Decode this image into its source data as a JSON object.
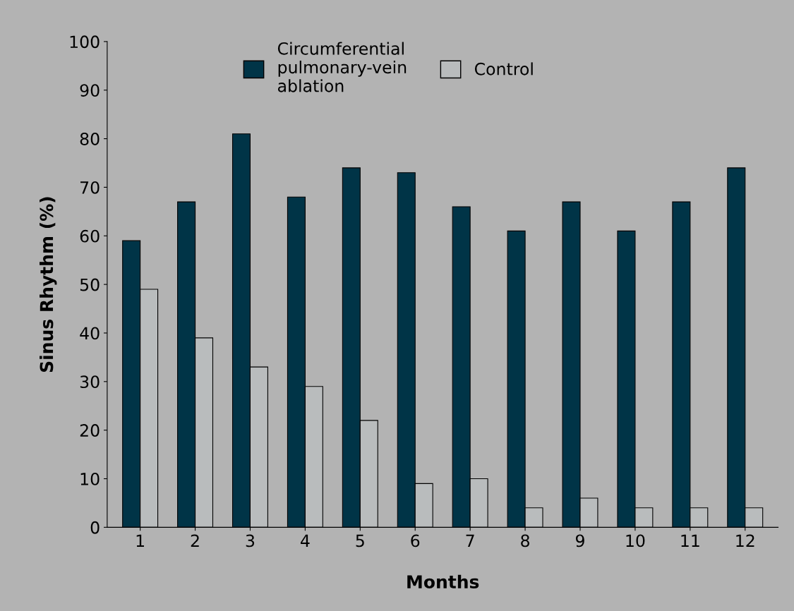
{
  "chart_data": {
    "type": "bar",
    "xlabel": "Months",
    "ylabel": "Sinus Rhythm (%)",
    "categories": [
      "1",
      "2",
      "3",
      "4",
      "5",
      "6",
      "7",
      "8",
      "9",
      "10",
      "11",
      "12"
    ],
    "series": [
      {
        "name": "Circumferential\npulmonary-vein\nablation",
        "color": "#003447",
        "values": [
          59,
          67,
          81,
          68,
          74,
          73,
          66,
          61,
          67,
          61,
          67,
          74
        ]
      },
      {
        "name": "Control",
        "color": "#b9bcbd",
        "values": [
          49,
          39,
          33,
          29,
          22,
          9,
          10,
          4,
          6,
          4,
          4,
          4
        ]
      }
    ],
    "ylim": [
      0,
      100
    ],
    "yticks": [
      0,
      10,
      20,
      30,
      40,
      50,
      60,
      70,
      80,
      90,
      100
    ],
    "grid": false,
    "legend": "top"
  }
}
